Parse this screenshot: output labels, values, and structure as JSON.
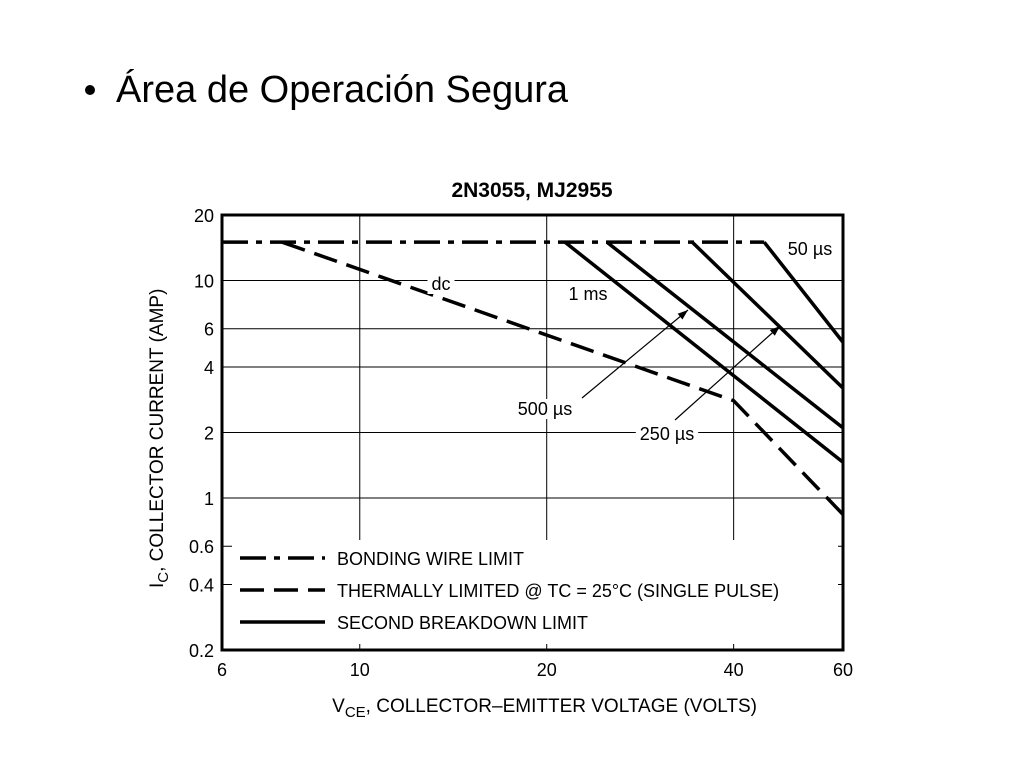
{
  "slide_title": "Área de Operación Segura",
  "chart_data": {
    "type": "line",
    "title": "2N3055, MJ2955",
    "x_label": [
      "V",
      "CE",
      ", COLLECTOR–EMITTER VOLTAGE (VOLTS)"
    ],
    "y_label": [
      "I",
      "C",
      ", COLLECTOR CURRENT (AMP)"
    ],
    "log_x": true,
    "log_y": true,
    "grid": true,
    "xlim": [
      6,
      60
    ],
    "xticks": [
      6,
      10,
      20,
      40,
      60
    ],
    "ylim": [
      0.2,
      20
    ],
    "yticks": [
      0.2,
      0.4,
      0.6,
      1,
      2,
      4,
      6,
      10,
      20
    ],
    "legend": "lower left",
    "series": [
      {
        "name": "BONDING WIRE LIMIT",
        "style": "dashdot",
        "color": "#000000",
        "x": [
          6,
          44.8
        ],
        "values": [
          15,
          15
        ]
      },
      {
        "name": "THERMALLY LIMITED @ TC = 25°C (SINGLE PULSE)",
        "style": "dashed",
        "color": "#000000",
        "label": "dc",
        "x": [
          7.5,
          40,
          60
        ],
        "values": [
          15,
          2.8,
          0.84
        ]
      },
      {
        "name": "SECOND BREAKDOWN LIMIT",
        "style": "solid",
        "color": "#000000",
        "lines": [
          {
            "label": "1 ms",
            "x": [
              21.4,
              60
            ],
            "values": [
              15,
              1.46
            ]
          },
          {
            "label": "500 µs",
            "x": [
              25,
              60
            ],
            "values": [
              15,
              2.1
            ]
          },
          {
            "label": "250 µs",
            "x": [
              34.3,
              60
            ],
            "values": [
              15,
              3.2
            ]
          },
          {
            "label": "50 µs",
            "x": [
              44.8,
              60
            ],
            "values": [
              15,
              5.2
            ]
          }
        ]
      }
    ]
  }
}
